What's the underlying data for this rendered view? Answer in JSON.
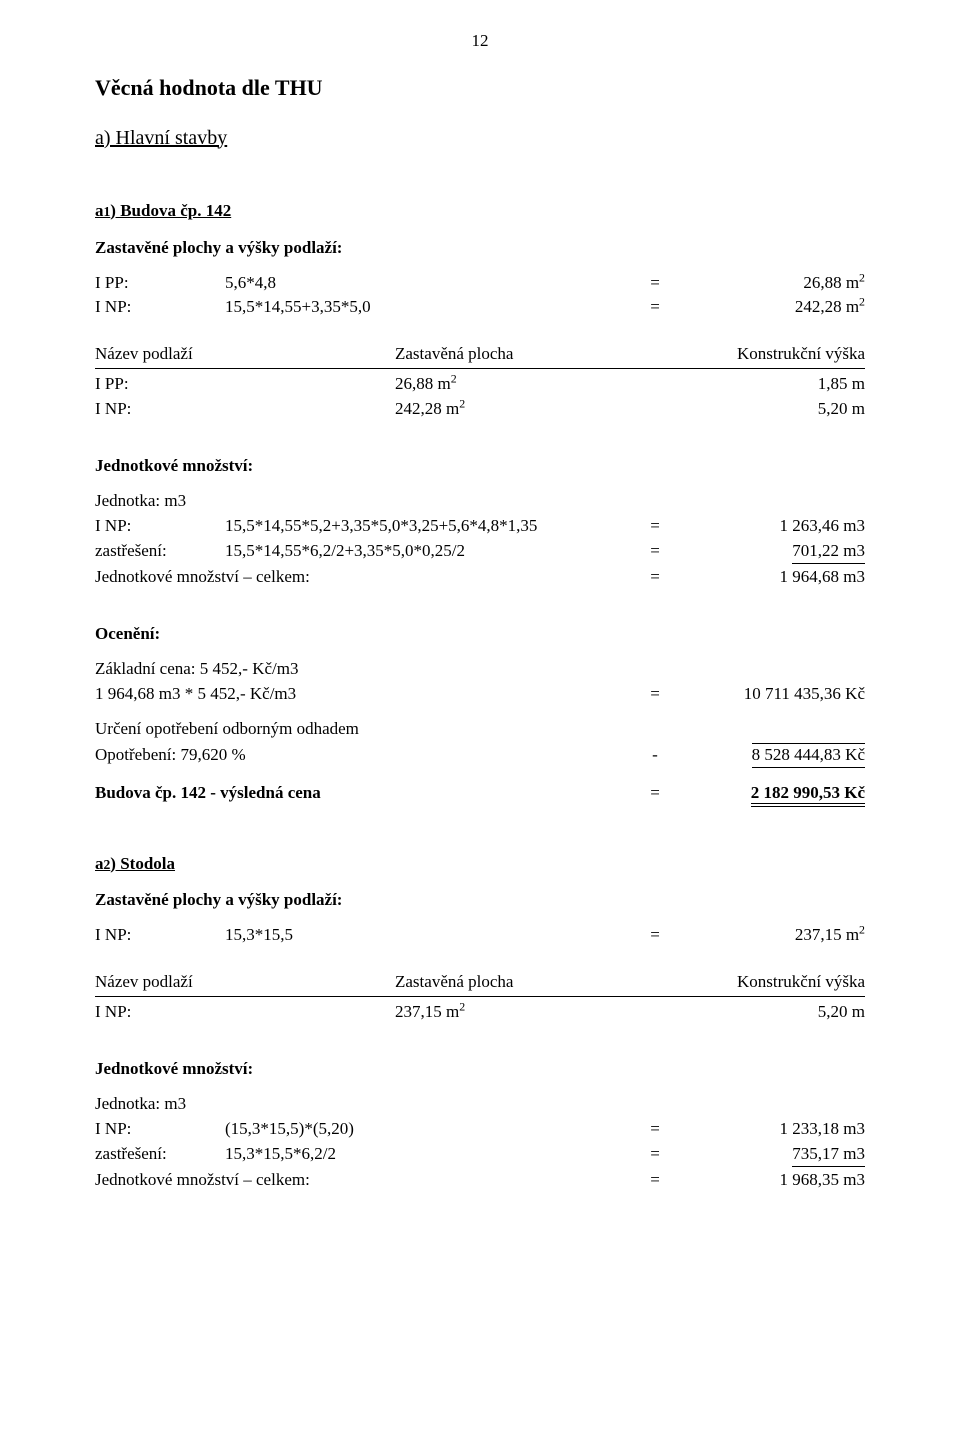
{
  "page_number": "12",
  "title": "Věcná hodnota dle THU",
  "section_a": "a) Hlavní stavby",
  "a1": {
    "heading": "a1) Budova čp. 142",
    "zast_heading": "Zastavěné plochy a výšky podlaží:",
    "rows": [
      {
        "label": "I PP:",
        "expr": "5,6*4,8",
        "eq": "=",
        "val": "26,88 m",
        "sup": "2"
      },
      {
        "label": "I NP:",
        "expr": "15,5*14,55+3,35*5,0",
        "eq": "=",
        "val": "242,28 m",
        "sup": "2"
      }
    ],
    "tab": {
      "hdr": {
        "name": "Název podlaží",
        "area": "Zastavěná plocha",
        "height": "Konstrukční výška"
      },
      "rows": [
        {
          "name": "I PP:",
          "area": "26,88 m",
          "asup": "2",
          "height": "1,85 m"
        },
        {
          "name": "I NP:",
          "area": "242,28 m",
          "asup": "2",
          "height": "5,20 m"
        }
      ]
    },
    "jm_heading": "Jednotkové množství:",
    "unit": "Jednotka: m3",
    "jm_rows": [
      {
        "label": "I NP:",
        "expr": "15,5*14,55*5,2+3,35*5,0*3,25+5,6*4,8*1,35",
        "eq": "=",
        "val": "1 263,46 m3"
      },
      {
        "label": "zastřešení:",
        "expr": "15,5*14,55*6,2/2+3,35*5,0*0,25/2",
        "eq": "=",
        "val": "701,22 m3"
      }
    ],
    "jm_total": {
      "label": "Jednotkové množství – celkem:",
      "eq": "=",
      "val": "1 964,68 m3"
    },
    "ocen_heading": "Ocenění:",
    "base_price": "Základní cena: 5 452,- Kč/m3",
    "mult": {
      "expr": "1 964,68 m3 * 5 452,- Kč/m3",
      "eq": "=",
      "val": "10 711 435,36 Kč"
    },
    "wear_line": "Určení opotřebení odborným odhadem",
    "wear": {
      "expr": "Opotřebení: 79,620 %",
      "eq": "-",
      "val": "8 528 444,83 Kč"
    },
    "result": {
      "label": "Budova čp. 142 - výsledná cena",
      "eq": "=",
      "val": "2 182 990,53 Kč"
    }
  },
  "a2": {
    "heading": "a2) Stodola",
    "zast_heading": "Zastavěné plochy a výšky podlaží:",
    "rows": [
      {
        "label": "I NP:",
        "expr": "15,3*15,5",
        "eq": "=",
        "val": "237,15 m",
        "sup": "2"
      }
    ],
    "tab": {
      "hdr": {
        "name": "Název podlaží",
        "area": "Zastavěná plocha",
        "height": "Konstrukční výška"
      },
      "rows": [
        {
          "name": "I NP:",
          "area": "237,15 m",
          "asup": "2",
          "height": "5,20 m"
        }
      ]
    },
    "jm_heading": "Jednotkové množství:",
    "unit": "Jednotka: m3",
    "jm_rows": [
      {
        "label": "I NP:",
        "expr": "(15,3*15,5)*(5,20)",
        "eq": "=",
        "val": "1 233,18 m3"
      },
      {
        "label": "zastřešení:",
        "expr": "15,3*15,5*6,2/2",
        "eq": "=",
        "val": "735,17 m3"
      }
    ],
    "jm_total": {
      "label": "Jednotkové množství – celkem:",
      "eq": "=",
      "val": "1 968,35 m3"
    }
  }
}
